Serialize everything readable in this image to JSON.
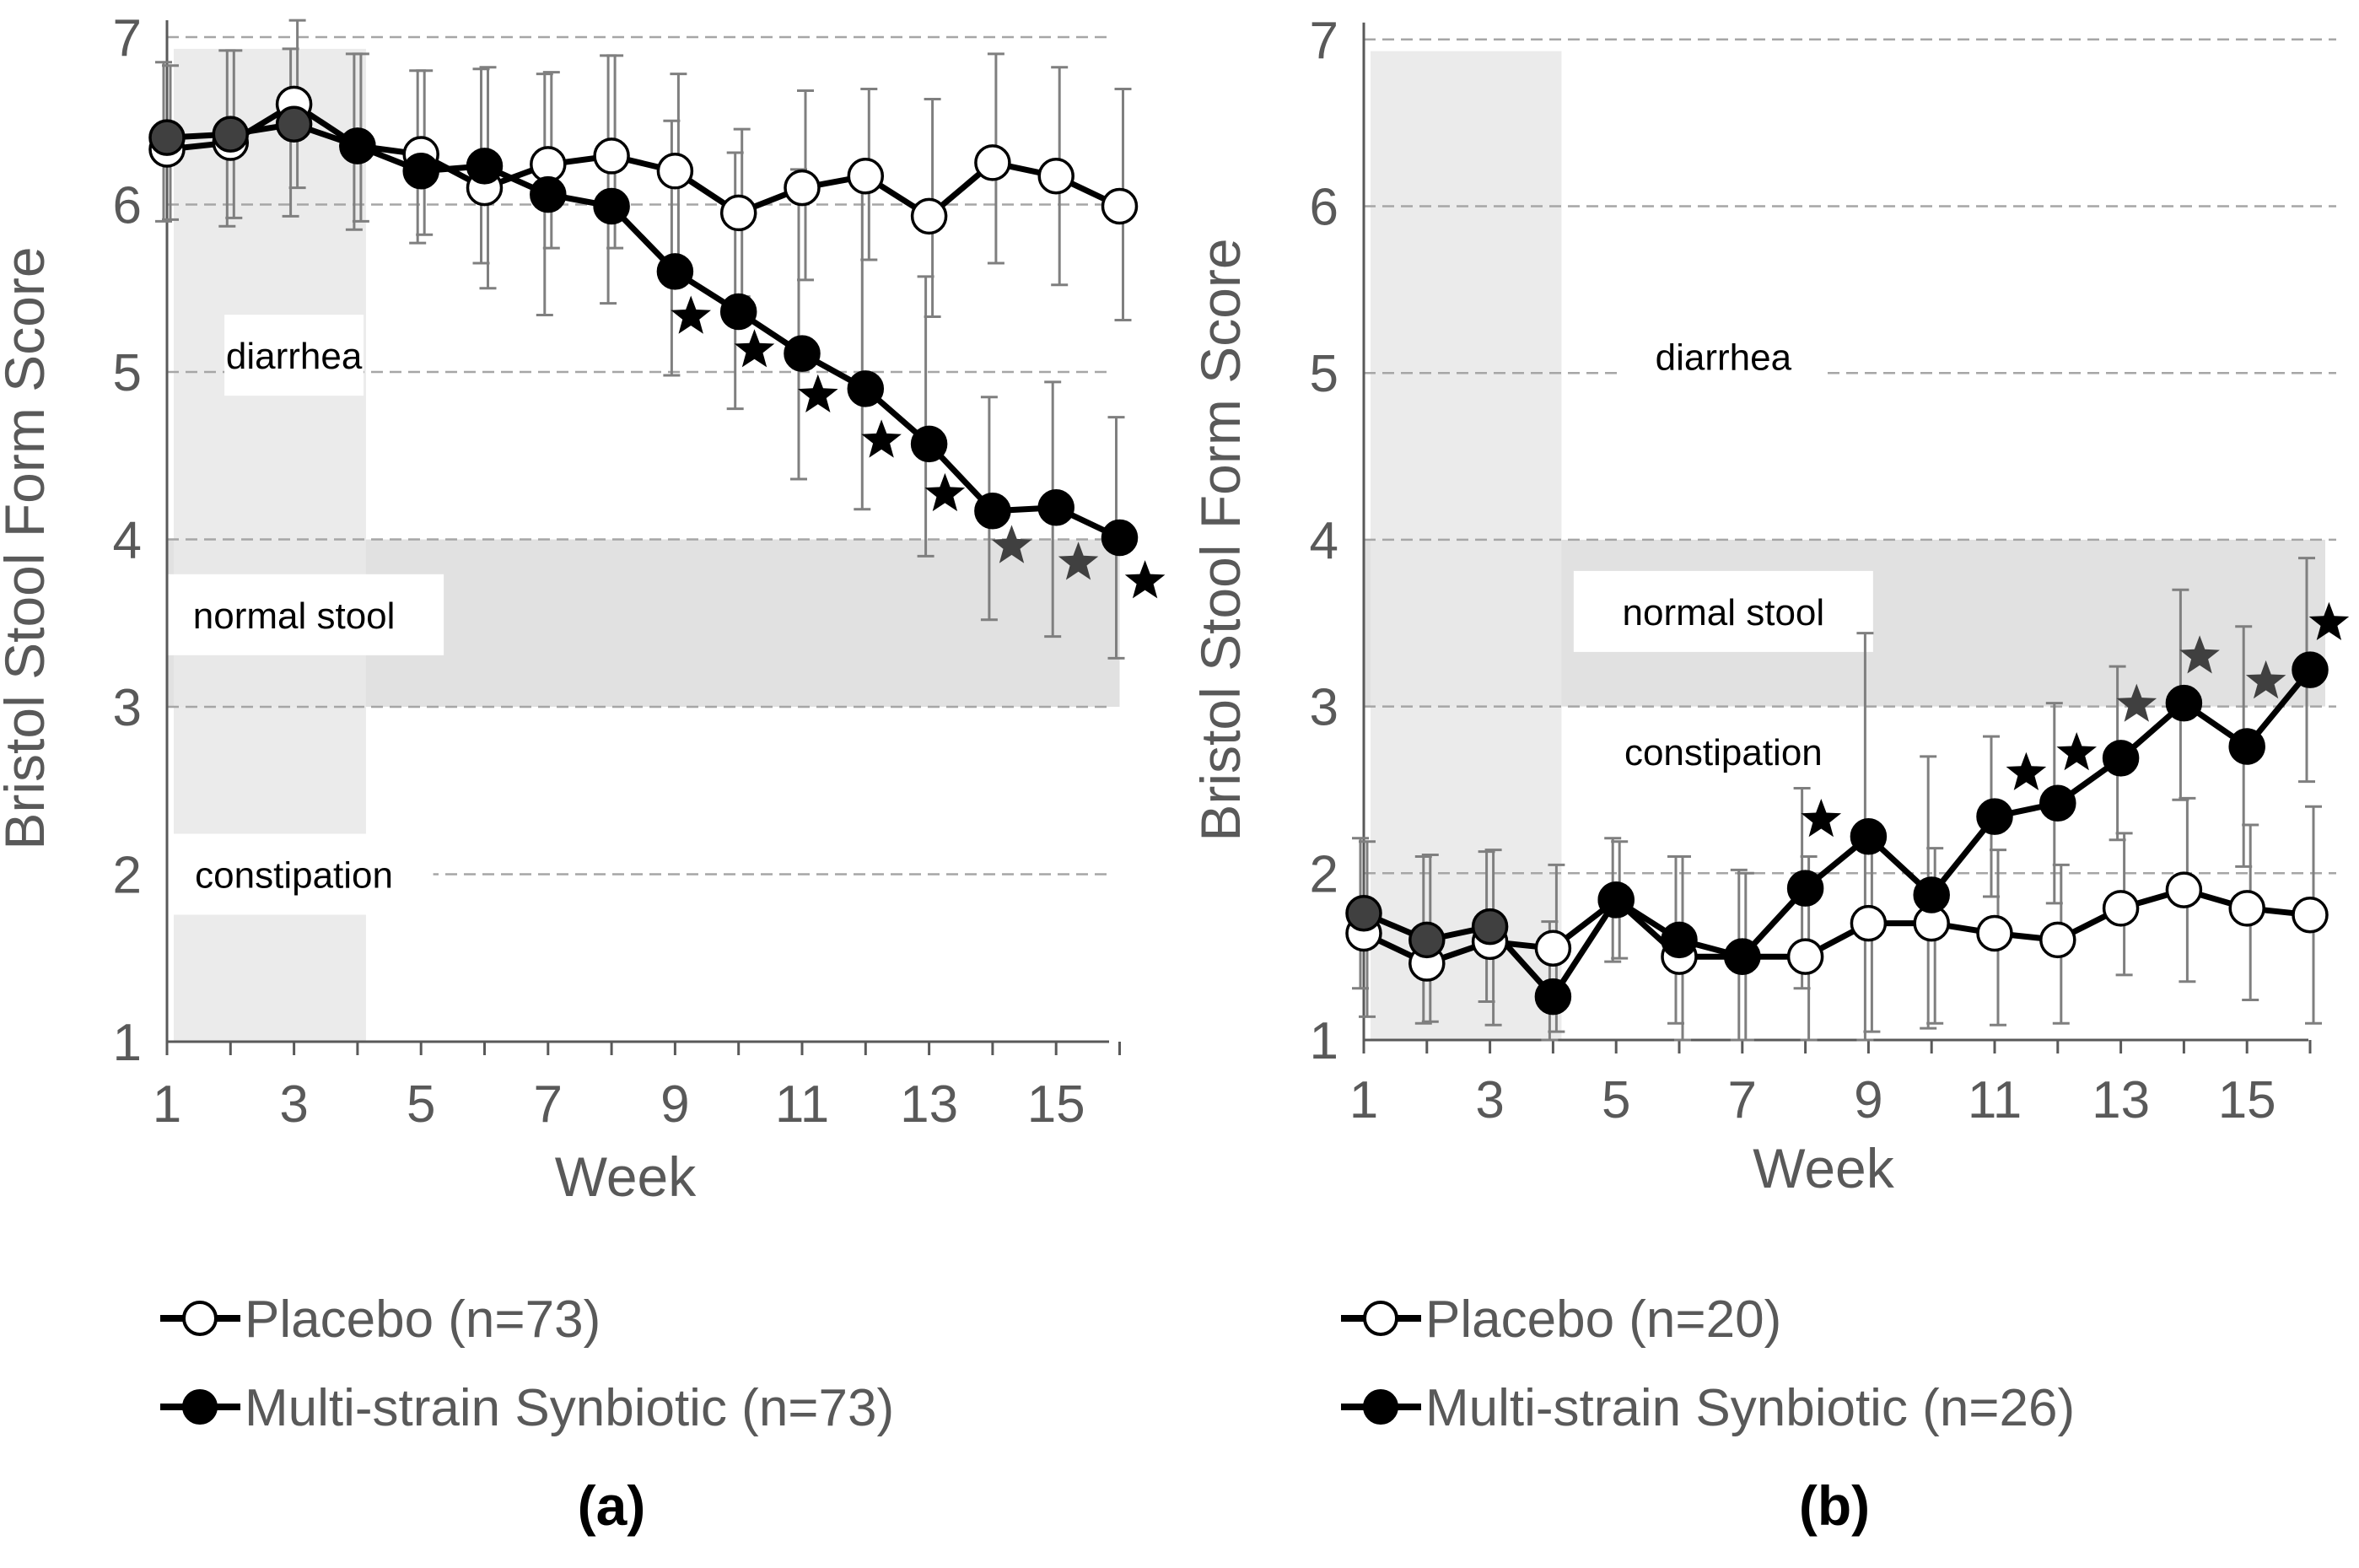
{
  "chart_data": [
    {
      "type": "line",
      "panel_label": "(a)",
      "ylabel": "Bristol Stool Form Score",
      "xlabel": "Week",
      "xlim": [
        1,
        16
      ],
      "ylim": [
        1,
        7
      ],
      "xticks": [
        1,
        3,
        5,
        7,
        9,
        11,
        13,
        15
      ],
      "yticks": [
        1,
        2,
        3,
        4,
        5,
        6,
        7
      ],
      "gridlines": [
        2,
        3,
        4,
        5,
        6,
        7
      ],
      "baseline_shading_weeks": [
        1,
        4
      ],
      "normal_band": [
        3,
        4
      ],
      "regions": [
        {
          "label": "diarrhea",
          "x": 3.0,
          "y": 5.1
        },
        {
          "label": "normal stool",
          "x": 3.0,
          "y": 3.55
        },
        {
          "label": "constipation",
          "x": 3.0,
          "y": 2.0
        }
      ],
      "series": [
        {
          "name": "Placebo (n=73)",
          "marker": "open",
          "x": [
            1,
            2,
            3,
            4,
            5,
            6,
            7,
            8,
            9,
            10,
            11,
            12,
            13,
            14,
            15,
            16
          ],
          "values": [
            6.33,
            6.37,
            6.6,
            6.35,
            6.3,
            6.1,
            6.24,
            6.29,
            6.2,
            5.95,
            6.1,
            6.17,
            5.93,
            6.25,
            6.17,
            5.99
          ],
          "err_up": [
            0.5,
            0.55,
            0.5,
            0.55,
            0.5,
            0.72,
            0.55,
            0.6,
            0.58,
            0.5,
            0.58,
            0.52,
            0.7,
            0.65,
            0.65,
            0.7
          ],
          "err_down": [
            0.42,
            0.45,
            0.5,
            0.45,
            0.48,
            0.6,
            0.5,
            0.55,
            0.55,
            0.5,
            0.55,
            0.5,
            0.6,
            0.6,
            0.65,
            0.68
          ]
        },
        {
          "name": "Multi-strain Synbiotic (n=73)",
          "marker": "filled",
          "x": [
            1,
            2,
            3,
            4,
            5,
            6,
            7,
            8,
            9,
            10,
            11,
            12,
            13,
            14,
            15,
            16
          ],
          "values": [
            6.4,
            6.42,
            6.48,
            6.35,
            6.2,
            6.23,
            6.06,
            5.99,
            5.6,
            5.36,
            5.11,
            4.9,
            4.57,
            4.17,
            4.19,
            4.01
          ],
          "err_up": [
            0.45,
            0.5,
            0.45,
            0.55,
            0.6,
            0.58,
            0.72,
            0.9,
            0.9,
            0.95,
            1.1,
            1.3,
            1.0,
            0.68,
            0.75,
            0.72
          ],
          "err_down": [
            0.5,
            0.55,
            0.55,
            0.5,
            0.43,
            0.58,
            0.72,
            0.58,
            0.62,
            0.58,
            0.75,
            0.72,
            0.67,
            0.65,
            0.77,
            0.72
          ]
        }
      ],
      "significance_stars": [
        {
          "x": 9.25,
          "y": 5.33,
          "shade": "black"
        },
        {
          "x": 10.25,
          "y": 5.13,
          "shade": "black"
        },
        {
          "x": 11.25,
          "y": 4.86,
          "shade": "black"
        },
        {
          "x": 12.25,
          "y": 4.59,
          "shade": "black"
        },
        {
          "x": 13.25,
          "y": 4.27,
          "shade": "black"
        },
        {
          "x": 14.3,
          "y": 3.96,
          "shade": "gray"
        },
        {
          "x": 15.35,
          "y": 3.86,
          "shade": "gray"
        },
        {
          "x": 16.4,
          "y": 3.75,
          "shade": "black"
        }
      ]
    },
    {
      "type": "line",
      "panel_label": "(b)",
      "ylabel": "Bristol Stool Form Score",
      "xlabel": "Week",
      "xlim": [
        1,
        16
      ],
      "ylim": [
        1,
        7
      ],
      "xticks": [
        1,
        3,
        5,
        7,
        9,
        11,
        13,
        15
      ],
      "yticks": [
        1,
        2,
        3,
        4,
        5,
        6,
        7
      ],
      "gridlines": [
        2,
        3,
        4,
        5,
        6,
        7
      ],
      "baseline_shading_weeks": [
        1,
        4
      ],
      "normal_band": [
        3,
        4
      ],
      "regions": [
        {
          "label": "diarrhea",
          "x": 6.7,
          "y": 5.1
        },
        {
          "label": "normal stool",
          "x": 6.7,
          "y": 3.57
        },
        {
          "label": "constipation",
          "x": 6.7,
          "y": 2.73
        }
      ],
      "series": [
        {
          "name": "Placebo (n=20)",
          "marker": "open",
          "x": [
            1,
            2,
            3,
            4,
            5,
            6,
            7,
            8,
            9,
            10,
            11,
            12,
            13,
            14,
            15,
            16
          ],
          "values": [
            1.64,
            1.46,
            1.59,
            1.55,
            1.84,
            1.5,
            1.5,
            1.5,
            1.7,
            1.7,
            1.64,
            1.6,
            1.79,
            1.9,
            1.79,
            1.75
          ],
          "err_up": [
            0.55,
            0.65,
            0.55,
            0.5,
            0.35,
            0.6,
            0.5,
            0.6,
            0.55,
            0.45,
            0.5,
            0.45,
            0.45,
            0.55,
            0.5,
            0.65
          ],
          "err_down": [
            0.5,
            0.35,
            0.5,
            0.5,
            0.35,
            0.5,
            0.5,
            0.5,
            0.65,
            0.6,
            0.55,
            0.5,
            0.4,
            0.55,
            0.55,
            0.65
          ]
        },
        {
          "name": "Multi-strain Synbiotic (n=26)",
          "marker": "filled",
          "x": [
            1,
            2,
            3,
            4,
            5,
            6,
            7,
            8,
            9,
            10,
            11,
            12,
            13,
            14,
            15,
            16
          ],
          "values": [
            1.76,
            1.6,
            1.68,
            1.26,
            1.84,
            1.6,
            1.5,
            1.91,
            2.22,
            1.87,
            2.34,
            2.42,
            2.69,
            3.02,
            2.76,
            3.22
          ],
          "err_up": [
            0.45,
            0.5,
            0.45,
            0.45,
            0.37,
            0.5,
            0.52,
            0.6,
            1.22,
            0.83,
            0.48,
            0.6,
            0.55,
            0.68,
            0.72,
            0.67
          ],
          "err_down": [
            0.45,
            0.5,
            0.45,
            0.26,
            0.37,
            0.5,
            0.5,
            0.6,
            1.22,
            0.8,
            0.48,
            0.6,
            0.49,
            0.58,
            0.72,
            0.67
          ]
        }
      ],
      "significance_stars": [
        {
          "x": 8.25,
          "y": 2.32,
          "shade": "black"
        },
        {
          "x": 11.5,
          "y": 2.6,
          "shade": "black"
        },
        {
          "x": 12.3,
          "y": 2.72,
          "shade": "black"
        },
        {
          "x": 13.25,
          "y": 3.01,
          "shade": "gray"
        },
        {
          "x": 14.25,
          "y": 3.3,
          "shade": "gray"
        },
        {
          "x": 15.3,
          "y": 3.15,
          "shade": "gray"
        },
        {
          "x": 16.3,
          "y": 3.5,
          "shade": "black"
        }
      ]
    }
  ]
}
